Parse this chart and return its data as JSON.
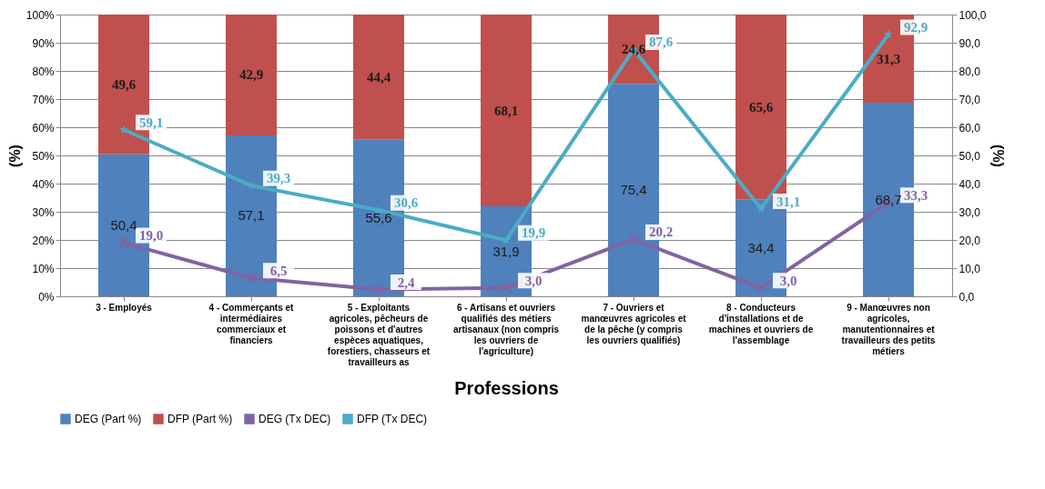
{
  "chart_data": {
    "type": "bar",
    "stacked": true,
    "xlabel": "Professions",
    "ylabel": "(%)",
    "y2label": "(%)",
    "categories": [
      "3 - Employés",
      "4 - Commerçants et intermédiaires commerciaux et financiers",
      "5 - Exploitants agricoles, pêcheurs de poissons et d'autres espèces aquatiques, forestiers, chasseurs et travailleurs as",
      "6 - Artisans et ouvriers qualifiés des métiers artisanaux (non compris les ouvriers de l'agriculture)",
      "7 - Ouvriers et manœuvres agricoles et de la pêche (y compris les ouvriers qualifiés)",
      "8 - Conducteurs d'installations et de machines et ouvriers de l'assemblage",
      "9 - Manœuvres non agricoles, manutentionnaires et travailleurs des petits métiers"
    ],
    "ylim": [
      0,
      100
    ],
    "yticks": [
      {
        "value": 0,
        "label": "0%"
      },
      {
        "value": 10,
        "label": "10%"
      },
      {
        "value": 20,
        "label": "20%"
      },
      {
        "value": 30,
        "label": "30%"
      },
      {
        "value": 40,
        "label": "40%"
      },
      {
        "value": 50,
        "label": "50%"
      },
      {
        "value": 60,
        "label": "60%"
      },
      {
        "value": 70,
        "label": "70%"
      },
      {
        "value": 80,
        "label": "80%"
      },
      {
        "value": 90,
        "label": "90%"
      },
      {
        "value": 100,
        "label": "100%"
      }
    ],
    "y2lim": [
      0,
      100
    ],
    "y2ticks": [
      {
        "value": 0,
        "label": "0,0"
      },
      {
        "value": 10,
        "label": "10,0"
      },
      {
        "value": 20,
        "label": "20,0"
      },
      {
        "value": 30,
        "label": "30,0"
      },
      {
        "value": 40,
        "label": "40,0"
      },
      {
        "value": 50,
        "label": "50,0"
      },
      {
        "value": 60,
        "label": "60,0"
      },
      {
        "value": 70,
        "label": "70,0"
      },
      {
        "value": 80,
        "label": "80,0"
      },
      {
        "value": 90,
        "label": "90,0"
      },
      {
        "value": 100,
        "label": "100,0"
      }
    ],
    "grid": "y",
    "legend": "bottom",
    "series": [
      {
        "name": "DEG (Part %)",
        "color": "#4f81bd",
        "values": [
          50.4,
          57.1,
          55.6,
          31.9,
          75.4,
          34.4,
          68.7
        ],
        "value_labels": [
          "50,4",
          "57,1",
          "55,6",
          "31,9",
          "75,4",
          "34,4",
          "68,7"
        ]
      },
      {
        "name": "DFP (Part %)",
        "color": "#c0504d",
        "values": [
          49.6,
          42.9,
          44.4,
          68.1,
          24.6,
          65.6,
          31.3
        ],
        "value_labels": [
          "49,6",
          "42,9",
          "44,4",
          "68,1",
          "24,6",
          "65,6",
          "31,3"
        ]
      },
      {
        "name": "DEG (Tx DEC)",
        "type": "line",
        "axis": "y2",
        "marker": "cross",
        "color": "#8064a2",
        "values": [
          19.0,
          6.5,
          2.4,
          3.0,
          20.2,
          3.0,
          33.3
        ],
        "value_labels": [
          "19,0",
          "6,5",
          "2,4",
          "3,0",
          "20,2",
          "3,0",
          "33,3"
        ]
      },
      {
        "name": "DFP (Tx DEC)",
        "type": "line",
        "axis": "y2",
        "marker": "star",
        "color": "#4bacc6",
        "values": [
          59.1,
          39.3,
          30.6,
          19.9,
          87.6,
          31.1,
          92.9
        ],
        "value_labels": [
          "59,1",
          "39,3",
          "30,6",
          "19,9",
          "87,6",
          "31,1",
          "92,9"
        ]
      }
    ]
  }
}
